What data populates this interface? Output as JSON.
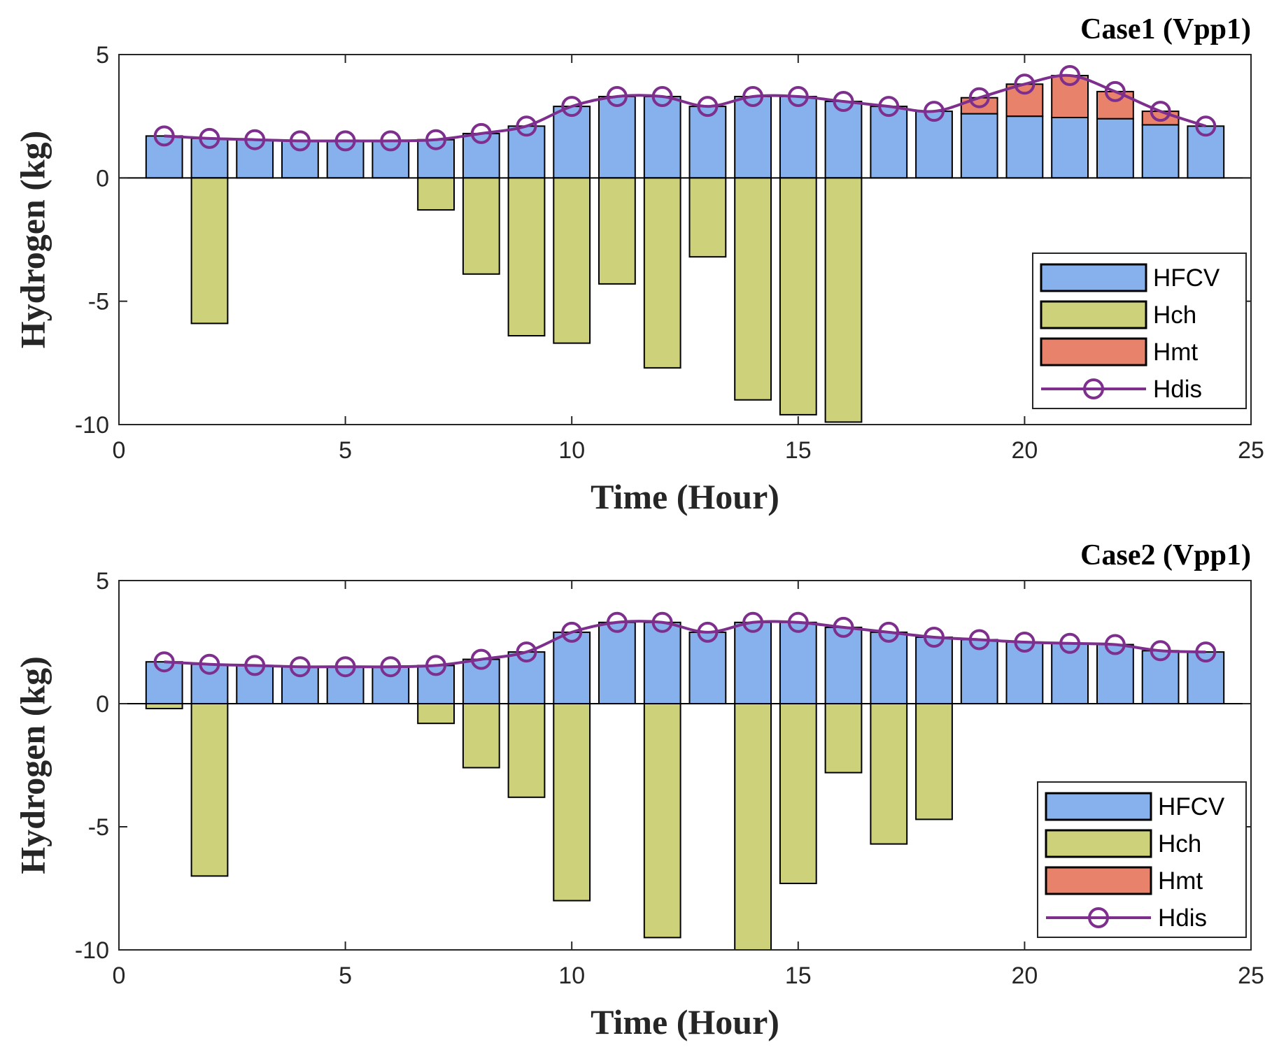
{
  "chart_data": [
    {
      "type": "bar",
      "title": "Case1 (Vpp1)",
      "xlabel": "Time (Hour)",
      "ylabel": "Hydrogen (kg)",
      "xlim": [
        0,
        25
      ],
      "ylim": [
        -10,
        5
      ],
      "xticks": [
        "0",
        "5",
        "10",
        "15",
        "20",
        "25"
      ],
      "yticks": [
        "5",
        "0",
        "-5",
        "-10"
      ],
      "x": [
        1,
        2,
        3,
        4,
        5,
        6,
        7,
        8,
        9,
        10,
        11,
        12,
        13,
        14,
        15,
        16,
        17,
        18,
        19,
        20,
        21,
        22,
        23,
        24
      ],
      "series": [
        {
          "name": "HFCV",
          "kind": "bar",
          "stack": "pos",
          "color": "#86b1ec",
          "values": [
            1.7,
            1.6,
            1.55,
            1.5,
            1.5,
            1.5,
            1.55,
            1.8,
            2.1,
            2.9,
            3.3,
            3.3,
            2.9,
            3.3,
            3.3,
            3.1,
            2.9,
            2.7,
            2.6,
            2.5,
            2.45,
            2.4,
            2.15,
            2.1
          ]
        },
        {
          "name": "Hch",
          "kind": "bar",
          "stack": "neg",
          "color": "#cdd17a",
          "values": [
            0,
            -5.9,
            0,
            0,
            0,
            0,
            -1.3,
            -3.9,
            -6.4,
            -6.7,
            -4.3,
            -7.7,
            -3.2,
            -9.0,
            -9.6,
            -9.9,
            0,
            0,
            0,
            0,
            0,
            0,
            0,
            0
          ]
        },
        {
          "name": "Hmt",
          "kind": "bar",
          "stack": "pos",
          "color": "#e8826a",
          "values": [
            0,
            0,
            0,
            0,
            0,
            0,
            0,
            0,
            0,
            0,
            0,
            0,
            0,
            0,
            0,
            0,
            0,
            0,
            0.65,
            1.3,
            1.7,
            1.1,
            0.55,
            0
          ]
        },
        {
          "name": "Hdis",
          "kind": "line",
          "color": "#7e2f8e",
          "values": [
            1.7,
            1.6,
            1.55,
            1.5,
            1.5,
            1.5,
            1.55,
            1.8,
            2.1,
            2.9,
            3.3,
            3.3,
            2.9,
            3.3,
            3.3,
            3.1,
            2.9,
            2.7,
            3.25,
            3.8,
            4.15,
            3.5,
            2.7,
            2.1
          ]
        }
      ],
      "legend": "bottom-right",
      "grid": false
    },
    {
      "type": "bar",
      "title": "Case2 (Vpp1)",
      "xlabel": "Time (Hour)",
      "ylabel": "Hydrogen (kg)",
      "xlim": [
        0,
        25
      ],
      "ylim": [
        -10,
        5
      ],
      "xticks": [
        "0",
        "5",
        "10",
        "15",
        "20",
        "25"
      ],
      "yticks": [
        "5",
        "0",
        "-5",
        "-10"
      ],
      "x": [
        1,
        2,
        3,
        4,
        5,
        6,
        7,
        8,
        9,
        10,
        11,
        12,
        13,
        14,
        15,
        16,
        17,
        18,
        19,
        20,
        21,
        22,
        23,
        24
      ],
      "series": [
        {
          "name": "HFCV",
          "kind": "bar",
          "stack": "pos",
          "color": "#86b1ec",
          "values": [
            1.7,
            1.6,
            1.55,
            1.5,
            1.5,
            1.5,
            1.55,
            1.8,
            2.1,
            2.9,
            3.3,
            3.3,
            2.9,
            3.3,
            3.3,
            3.1,
            2.9,
            2.7,
            2.6,
            2.5,
            2.45,
            2.4,
            2.15,
            2.1
          ]
        },
        {
          "name": "Hch",
          "kind": "bar",
          "stack": "neg",
          "color": "#cdd17a",
          "values": [
            -0.2,
            -7.0,
            0,
            0,
            0,
            0,
            -0.8,
            -2.6,
            -3.8,
            -8.0,
            0,
            -9.5,
            0,
            -10.0,
            -7.3,
            -2.8,
            -5.7,
            -4.7,
            0,
            0,
            0,
            0,
            0,
            0
          ]
        },
        {
          "name": "Hmt",
          "kind": "bar",
          "stack": "pos",
          "color": "#e8826a",
          "values": [
            0,
            0,
            0,
            0,
            0,
            0,
            0,
            0,
            0,
            0,
            0,
            0,
            0,
            0,
            0,
            0,
            0,
            0,
            0,
            0,
            0,
            0,
            0,
            0
          ]
        },
        {
          "name": "Hdis",
          "kind": "line",
          "color": "#7e2f8e",
          "values": [
            1.7,
            1.6,
            1.55,
            1.5,
            1.5,
            1.5,
            1.55,
            1.8,
            2.1,
            2.9,
            3.3,
            3.3,
            2.9,
            3.3,
            3.3,
            3.1,
            2.9,
            2.7,
            2.6,
            2.5,
            2.45,
            2.4,
            2.15,
            2.1
          ]
        }
      ],
      "legend": "bottom-right",
      "grid": false
    }
  ]
}
